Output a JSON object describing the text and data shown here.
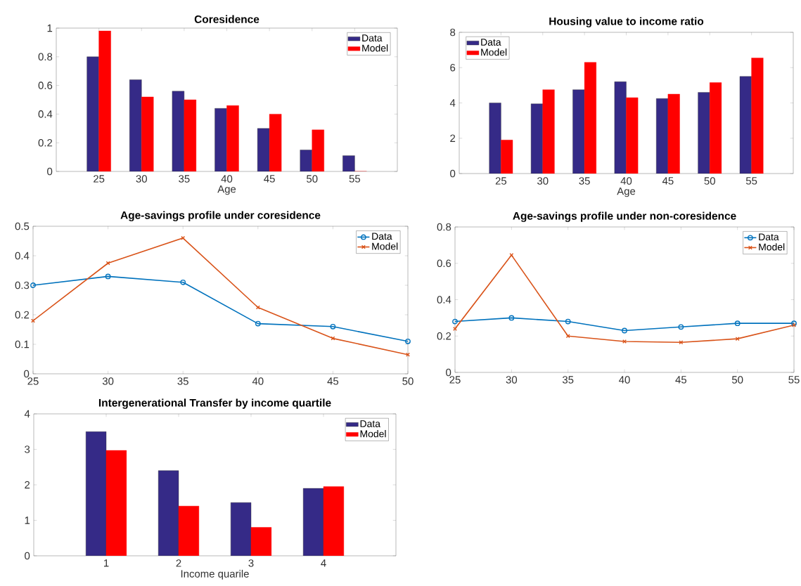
{
  "chart_data": [
    {
      "type": "bar",
      "title": "Coresidence",
      "xlabel": "Age",
      "categories": [
        "25",
        "30",
        "35",
        "40",
        "45",
        "50",
        "55"
      ],
      "series": [
        {
          "name": "Data",
          "color": "#352a87",
          "values": [
            0.8,
            0.64,
            0.56,
            0.44,
            0.3,
            0.15,
            0.11
          ]
        },
        {
          "name": "Model",
          "color": "#ff0000",
          "values": [
            0.98,
            0.52,
            0.5,
            0.46,
            0.4,
            0.29,
            0.0
          ]
        }
      ],
      "ylim": [
        0,
        1
      ],
      "yticks": [
        0,
        0.2,
        0.4,
        0.6,
        0.8,
        1
      ],
      "legend": "top right"
    },
    {
      "type": "bar",
      "title": "Housing value to income ratio",
      "xlabel": "Age",
      "categories": [
        "25",
        "30",
        "35",
        "40",
        "45",
        "50",
        "55"
      ],
      "series": [
        {
          "name": "Data",
          "color": "#352a87",
          "values": [
            4.0,
            3.95,
            4.75,
            5.2,
            4.25,
            4.6,
            5.5
          ]
        },
        {
          "name": "Model",
          "color": "#ff0000",
          "values": [
            1.9,
            4.75,
            6.3,
            4.3,
            4.5,
            5.15,
            6.55
          ]
        }
      ],
      "ylim": [
        0,
        8
      ],
      "yticks": [
        0,
        2,
        4,
        6,
        8
      ],
      "legend": "top left"
    },
    {
      "type": "line",
      "title": "Age-savings profile under coresidence",
      "x": [
        25,
        30,
        35,
        40,
        45,
        50
      ],
      "series": [
        {
          "name": "Data",
          "color": "#0072bd",
          "marker": "circle",
          "values": [
            0.3,
            0.33,
            0.31,
            0.17,
            0.16,
            0.11
          ]
        },
        {
          "name": "Model",
          "color": "#d95319",
          "marker": "cross",
          "values": [
            0.18,
            0.375,
            0.46,
            0.225,
            0.12,
            0.065
          ]
        }
      ],
      "xlim": [
        25,
        50
      ],
      "xticks": [
        25,
        30,
        35,
        40,
        45,
        50
      ],
      "ylim": [
        0,
        0.5
      ],
      "yticks": [
        0,
        0.1,
        0.2,
        0.3,
        0.4,
        0.5
      ],
      "legend": "top right"
    },
    {
      "type": "line",
      "title": "Age-savings profile under non-coresidence",
      "x": [
        25,
        30,
        35,
        40,
        45,
        50,
        55
      ],
      "series": [
        {
          "name": "Data",
          "color": "#0072bd",
          "marker": "circle",
          "values": [
            0.28,
            0.3,
            0.28,
            0.23,
            0.25,
            0.27,
            0.27
          ]
        },
        {
          "name": "Model",
          "color": "#d95319",
          "marker": "cross",
          "values": [
            0.24,
            0.645,
            0.2,
            0.17,
            0.165,
            0.185,
            0.26
          ]
        }
      ],
      "xlim": [
        25,
        55
      ],
      "xticks": [
        25,
        30,
        35,
        40,
        45,
        50,
        55
      ],
      "ylim": [
        0,
        0.8
      ],
      "yticks": [
        0,
        0.2,
        0.4,
        0.6,
        0.8
      ],
      "legend": "top right"
    },
    {
      "type": "bar",
      "title": "Intergenerational Transfer by income quartile",
      "xlabel": "Income quarile",
      "categories": [
        "1",
        "2",
        "3",
        "4"
      ],
      "series": [
        {
          "name": "Data",
          "color": "#352a87",
          "values": [
            3.5,
            2.4,
            1.5,
            1.9
          ]
        },
        {
          "name": "Model",
          "color": "#ff0000",
          "values": [
            2.97,
            1.4,
            0.8,
            1.95
          ]
        }
      ],
      "ylim": [
        0,
        4
      ],
      "yticks": [
        0,
        1,
        2,
        3,
        4
      ],
      "legend": "top right"
    }
  ]
}
